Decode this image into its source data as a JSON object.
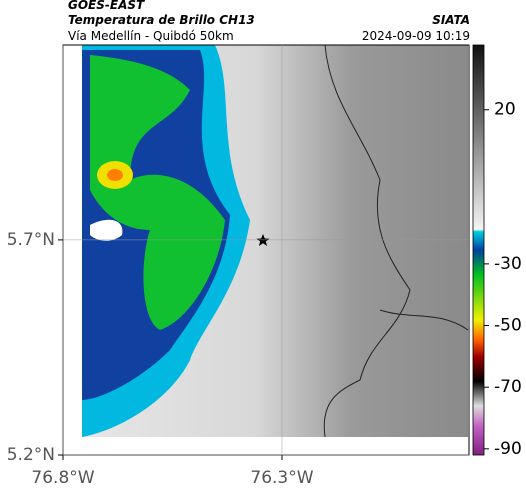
{
  "header": {
    "title": "GOES-EAST",
    "subtitle": "Temperatura de Brillo CH13",
    "source": "SIATA",
    "region": "Vía Medellín - Quibdó 50km",
    "datetime": "2024-09-09 10:19"
  },
  "map": {
    "xlim": [
      -76.8,
      -75.873
    ],
    "ylim": [
      5.2,
      6.153
    ],
    "xticks": [
      {
        "value": -76.8,
        "label": "76.8°W"
      },
      {
        "value": -76.3,
        "label": "76.3°W"
      }
    ],
    "yticks": [
      {
        "value": 5.2,
        "label": "5.2°N"
      },
      {
        "value": 5.7,
        "label": "5.7°N"
      }
    ]
  },
  "colorbar": {
    "lim": [
      -92,
      41
    ],
    "ticks": [
      20,
      -30,
      -50,
      -70,
      -90
    ]
  }
}
